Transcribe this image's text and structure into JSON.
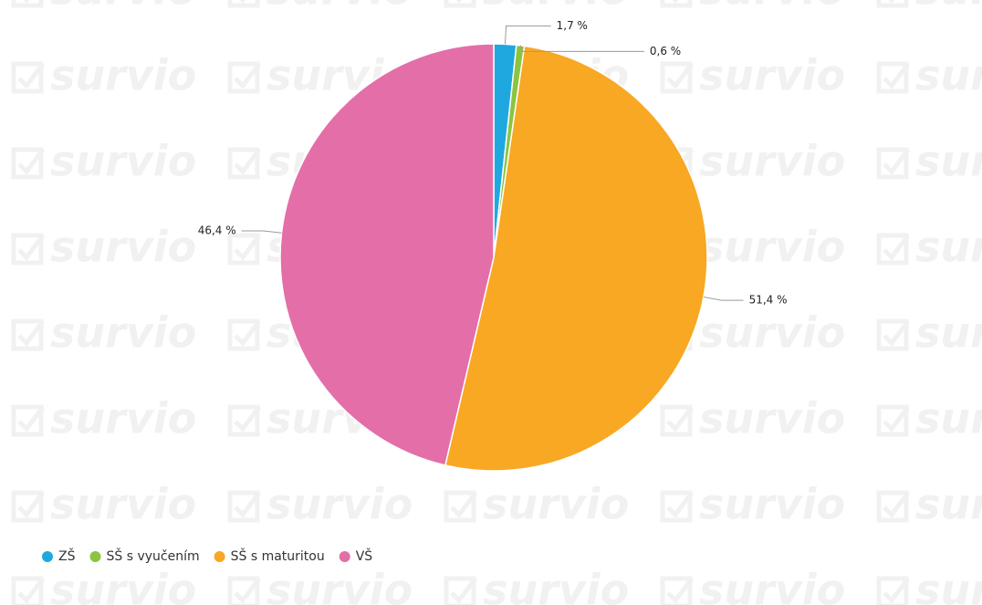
{
  "watermark": "survio",
  "chart_data": {
    "type": "pie",
    "categories": [
      "ZŠ",
      "SŠ s vyučením",
      "SŠ s maturitou",
      "VŠ"
    ],
    "values": [
      1.7,
      0.6,
      51.4,
      46.4
    ],
    "value_labels": [
      "1,7 %",
      "0,6 %",
      "51,4 %",
      "46,4 %"
    ],
    "colors": [
      "#1fa8e0",
      "#8bc540",
      "#f8a823",
      "#e46ea8"
    ],
    "legend": "bottom-left"
  }
}
